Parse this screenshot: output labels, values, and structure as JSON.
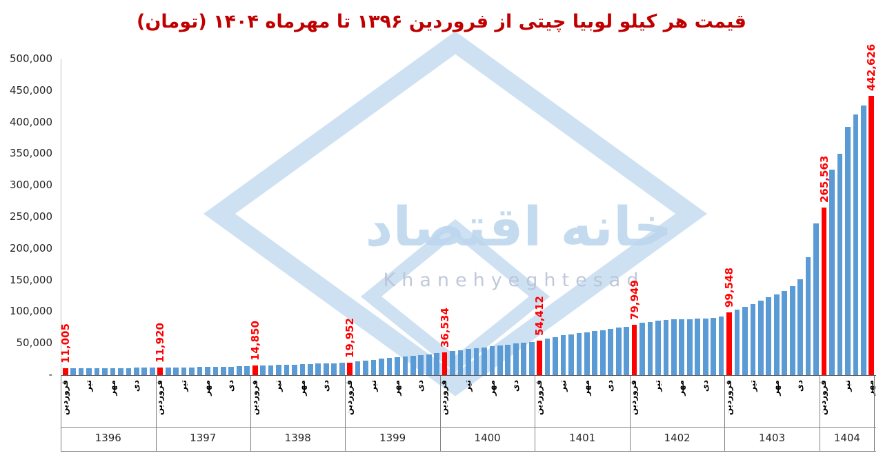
{
  "title": "قیمت هر کیلو لوبیا چیتی از فروردین ۱۳۹۶ تا مهرماه ۱۴۰۴ (تومان)",
  "watermark": {
    "name_fa": "خانه اقتصاد",
    "name_en": "Khanehyeghtesad"
  },
  "colors": {
    "bar": "#5B9BD5",
    "highlight": "#FF0000",
    "title": "#C00000",
    "value_label": "#FF0000",
    "watermark": "#BDD7EE",
    "axis": "#7F7F7F"
  },
  "chart_data": {
    "type": "bar",
    "title": "قیمت هر کیلو لوبیا چیتی از فروردین ۱۳۹۶ تا مهرماه ۱۴۰۴ (تومان)",
    "unit": "تومان",
    "ylim": [
      0,
      500000
    ],
    "y_tick_labels": [
      "500,000",
      "450,000",
      "400,000",
      "350,000",
      "300,000",
      "250,000",
      "200,000",
      "150,000",
      "100,000",
      "50,000",
      "-"
    ],
    "grid": false,
    "legend": false,
    "bar_color": "#5B9BD5",
    "highlight_color": "#FF0000",
    "month_tick_names": [
      "فروردین",
      "تیر",
      "مهر",
      "دی"
    ],
    "month_tick_positions": [
      0,
      3,
      6,
      9
    ],
    "groups": [
      {
        "year": "1396",
        "values": [
          11005,
          11100,
          11150,
          11200,
          11250,
          11300,
          11400,
          11450,
          11500,
          11600,
          11700,
          11800
        ]
      },
      {
        "year": "1397",
        "values": [
          11920,
          12050,
          12200,
          12350,
          12500,
          12700,
          12900,
          13100,
          13400,
          13700,
          14000,
          14400
        ]
      },
      {
        "year": "1398",
        "values": [
          14850,
          15200,
          15600,
          16000,
          16400,
          16800,
          17200,
          17600,
          18100,
          18600,
          19100,
          19600
        ]
      },
      {
        "year": "1399",
        "values": [
          19952,
          21500,
          23000,
          24500,
          26000,
          27500,
          28500,
          29500,
          30500,
          31500,
          33000,
          34500
        ]
      },
      {
        "year": "1400",
        "values": [
          36534,
          38000,
          39500,
          41000,
          42500,
          44000,
          45500,
          47000,
          48500,
          50000,
          51500,
          53000
        ]
      },
      {
        "year": "1401",
        "values": [
          54412,
          57500,
          60500,
          63000,
          65000,
          66500,
          68000,
          69500,
          71000,
          73000,
          75000,
          77000
        ]
      },
      {
        "year": "1402",
        "values": [
          79949,
          82500,
          84500,
          86000,
          87000,
          88000,
          88500,
          89000,
          89500,
          90000,
          91000,
          92500
        ]
      },
      {
        "year": "1403",
        "values": [
          99548,
          104000,
          108000,
          113000,
          118000,
          123000,
          128000,
          133000,
          141000,
          152000,
          187000,
          240000
        ]
      },
      {
        "year": "1404",
        "values": [
          265563,
          325000,
          350000,
          393000,
          413000,
          427000,
          442626
        ]
      }
    ],
    "highlights": [
      {
        "group": 0,
        "month": 0,
        "label": "11,005"
      },
      {
        "group": 1,
        "month": 0,
        "label": "11,920"
      },
      {
        "group": 2,
        "month": 0,
        "label": "14,850"
      },
      {
        "group": 3,
        "month": 0,
        "label": "19,952"
      },
      {
        "group": 4,
        "month": 0,
        "label": "36,534"
      },
      {
        "group": 5,
        "month": 0,
        "label": "54,412"
      },
      {
        "group": 6,
        "month": 0,
        "label": "79,949"
      },
      {
        "group": 7,
        "month": 0,
        "label": "99,548"
      },
      {
        "group": 8,
        "month": 0,
        "label": "265,563"
      },
      {
        "group": 8,
        "month": 6,
        "label": "442,626"
      }
    ]
  }
}
